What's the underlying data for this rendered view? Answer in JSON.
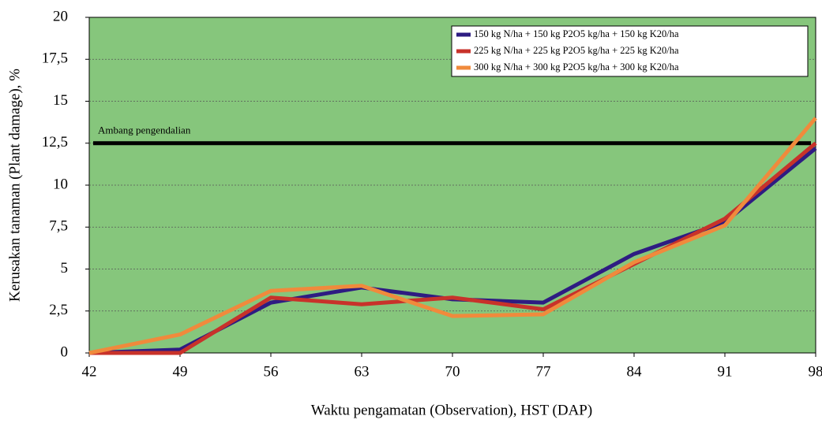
{
  "chart_data": {
    "type": "line",
    "x": [
      42,
      49,
      56,
      63,
      70,
      77,
      84,
      91,
      98
    ],
    "xlim": [
      42,
      98
    ],
    "xticks": [
      42,
      49,
      56,
      63,
      70,
      77,
      84,
      91,
      98
    ],
    "ylim": [
      0,
      20
    ],
    "yticks": [
      0,
      {
        "value": 2.5,
        "label": "2,5"
      },
      5,
      {
        "value": 7.5,
        "label": "7,5"
      },
      10,
      {
        "value": 12.5,
        "label": "12,5"
      },
      15,
      {
        "value": 17.5,
        "label": "17,5"
      },
      20
    ],
    "xlabel": "Waktu pengamatan (Observation), HST (DAP)",
    "ylabel": "Kerusakan tanaman (Plant damage), %",
    "grid": true,
    "background": "#86c67c",
    "legend": "upper right",
    "annotation": {
      "text": "Ambang pengendalian",
      "value": 12.5
    },
    "series": [
      {
        "name": "150 kg N/ha + 150 kg P2O5 kg/ha + 150 kg K20/ha",
        "color": "#2e1c82",
        "values": [
          0,
          0.2,
          3.0,
          3.9,
          3.2,
          3.0,
          5.9,
          7.8,
          12.2
        ]
      },
      {
        "name": "225 kg N/ha + 225 kg P2O5 kg/ha + 225 kg K20/ha",
        "color": "#c8322a",
        "values": [
          0,
          0,
          3.3,
          2.9,
          3.3,
          2.6,
          5.3,
          8.0,
          12.5
        ]
      },
      {
        "name": "300 kg N/ha + 300 kg P2O5 kg/ha + 300 kg K20/ha",
        "color": "#f08a3c",
        "values": [
          0,
          1.1,
          3.7,
          4.0,
          2.2,
          2.3,
          5.4,
          7.6,
          14.0
        ]
      }
    ]
  }
}
